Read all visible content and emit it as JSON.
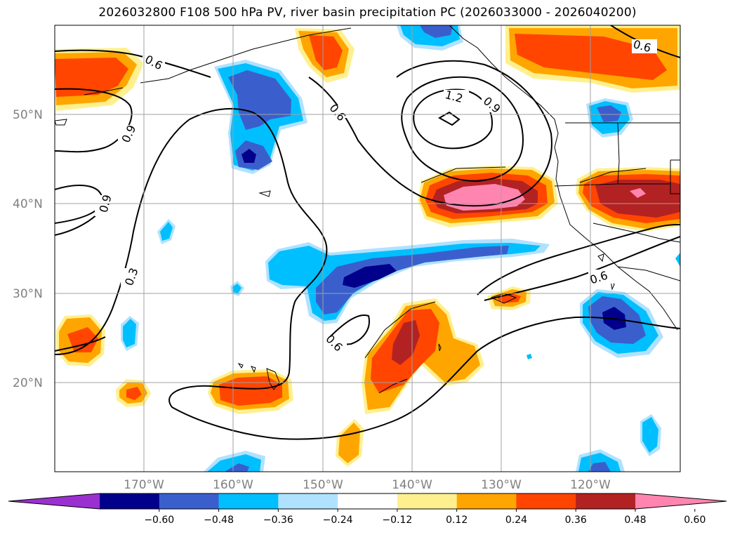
{
  "title": "2026032800 F108 500 hPa PV, river basin precipitation PC (2026033000 - 2026040200)",
  "map": {
    "lat_labels": [
      "50°N",
      "40°N",
      "30°N",
      "20°N"
    ],
    "lon_labels": [
      "170°W",
      "160°W",
      "150°W",
      "140°W",
      "130°W",
      "120°W"
    ],
    "contour_labels": [
      "0.6",
      "0.6",
      "0.9",
      "0.9",
      "0.3",
      "1.2",
      "0.9",
      "0.6",
      "0.6",
      "0.6"
    ],
    "grid": true
  },
  "colorbar": {
    "ticks": [
      "−0.60",
      "−0.48",
      "−0.36",
      "−0.24",
      "−0.12",
      "0.12",
      "0.24",
      "0.36",
      "0.48",
      "0.60"
    ],
    "colors": [
      "#9b30d0",
      "#00008b",
      "#3a5fcd",
      "#00bfff",
      "#b0e2ff",
      "#ffffff",
      "#fff08f",
      "#ffa500",
      "#ff4500",
      "#b22222",
      "#ff85b0"
    ]
  },
  "chart_data": {
    "type": "heatmap",
    "title": "2026032800 F108 500 hPa PV, river basin precipitation PC (2026033000 - 2026040200)",
    "x_ticks": [
      "170°W",
      "160°W",
      "150°W",
      "140°W",
      "130°W",
      "120°W"
    ],
    "y_ticks": [
      "20°N",
      "30°N",
      "40°N",
      "50°N"
    ],
    "xlim": [
      -180,
      -110
    ],
    "ylim": [
      10,
      60
    ],
    "colorbar_levels": [
      -0.6,
      -0.48,
      -0.36,
      -0.24,
      -0.12,
      0.12,
      0.24,
      0.36,
      0.48,
      0.6
    ],
    "contour_levels": [
      0.3,
      0.6,
      0.9,
      1.2
    ]
  }
}
